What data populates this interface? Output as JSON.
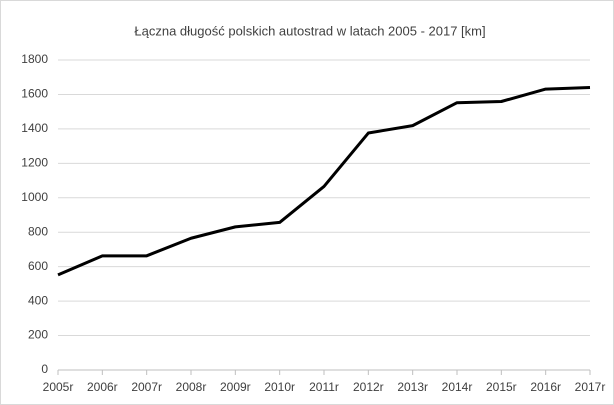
{
  "chart_data": {
    "type": "line",
    "title": "Łączna długość polskich autostrad w latach 2005 - 2017 [km]",
    "categories": [
      "2005r",
      "2006r",
      "2007r",
      "2008r",
      "2009r",
      "2010r",
      "2011r",
      "2012r",
      "2013r",
      "2014r",
      "2015r",
      "2016r",
      "2017r"
    ],
    "series": [
      {
        "name": "Łączna długość",
        "color": "#000000",
        "values": [
          552,
          663,
          663,
          765,
          831,
          857,
          1066,
          1376,
          1419,
          1552,
          1559,
          1631,
          1640
        ]
      }
    ],
    "ylim": [
      0,
      1800
    ],
    "yticks": [
      0,
      200,
      400,
      600,
      800,
      1000,
      1200,
      1400,
      1600,
      1800
    ],
    "grid": true,
    "legend": false
  }
}
